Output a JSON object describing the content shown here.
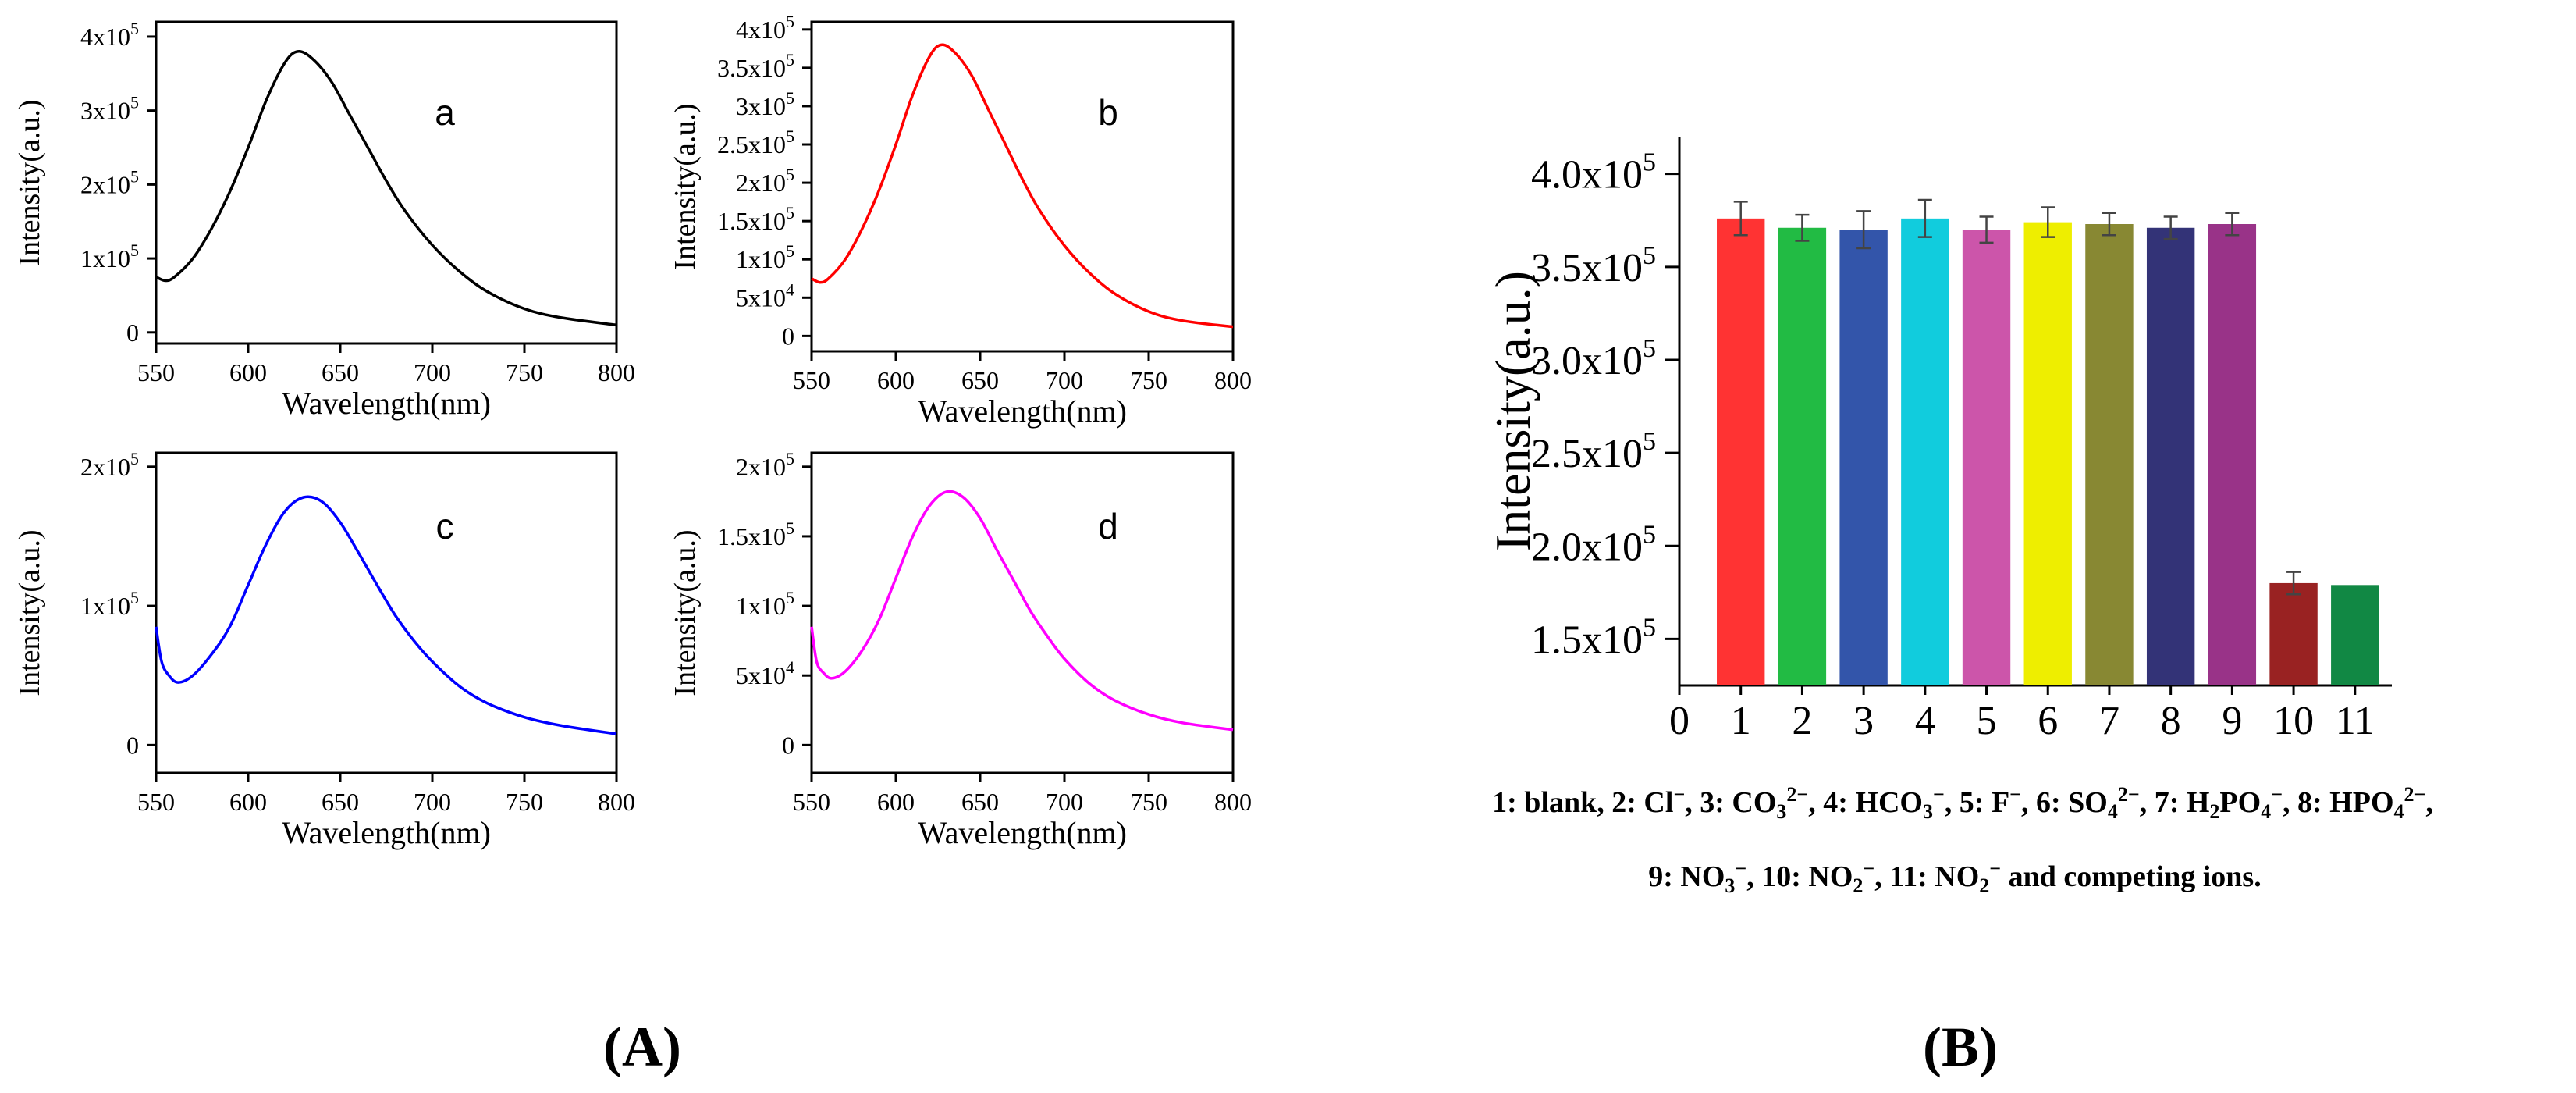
{
  "panels": {
    "A": {
      "label": "A"
    },
    "B": {
      "label": "B"
    }
  },
  "chart_data": [
    {
      "type": "line",
      "panel_label": "a",
      "color": "#000000",
      "xlabel": "Wavelength(nm)",
      "ylabel": "Intensity(a.u.)",
      "xlim": [
        550,
        800
      ],
      "ylim": [
        -15000,
        420000
      ],
      "x_ticks": [
        550,
        600,
        650,
        700,
        750,
        800
      ],
      "y_ticks": [
        {
          "value": 0,
          "mant": "0",
          "exp": ""
        },
        {
          "value": 100000,
          "mant": "1x10",
          "exp": "5"
        },
        {
          "value": 200000,
          "mant": "2x10",
          "exp": "5"
        },
        {
          "value": 300000,
          "mant": "3x10",
          "exp": "5"
        },
        {
          "value": 400000,
          "mant": "4x10",
          "exp": "5"
        }
      ],
      "x": [
        550,
        555,
        560,
        570,
        580,
        590,
        600,
        610,
        620,
        627,
        635,
        645,
        655,
        665,
        675,
        685,
        700,
        715,
        730,
        750,
        770,
        800
      ],
      "y": [
        75000,
        70000,
        75000,
        100000,
        140000,
        190000,
        250000,
        315000,
        365000,
        380000,
        370000,
        340000,
        295000,
        250000,
        205000,
        165000,
        118000,
        82000,
        55000,
        32000,
        20000,
        10000
      ]
    },
    {
      "type": "line",
      "panel_label": "b",
      "color": "#ff0000",
      "xlabel": "Wavelength(nm)",
      "ylabel": "Intensity(a.u.)",
      "xlim": [
        550,
        800
      ],
      "ylim": [
        -20000,
        410000
      ],
      "x_ticks": [
        550,
        600,
        650,
        700,
        750,
        800
      ],
      "y_ticks": [
        {
          "value": 0,
          "mant": "0",
          "exp": ""
        },
        {
          "value": 50000,
          "mant": "5x10",
          "exp": "4"
        },
        {
          "value": 100000,
          "mant": "1x10",
          "exp": "5"
        },
        {
          "value": 150000,
          "mant": "1.5x10",
          "exp": "5"
        },
        {
          "value": 200000,
          "mant": "2x10",
          "exp": "5"
        },
        {
          "value": 250000,
          "mant": "2.5x10",
          "exp": "5"
        },
        {
          "value": 300000,
          "mant": "3x10",
          "exp": "5"
        },
        {
          "value": 350000,
          "mant": "3.5x10",
          "exp": "5"
        },
        {
          "value": 400000,
          "mant": "4x10",
          "exp": "5"
        }
      ],
      "x": [
        550,
        555,
        560,
        570,
        580,
        590,
        600,
        610,
        620,
        627,
        635,
        645,
        655,
        665,
        675,
        685,
        700,
        715,
        730,
        750,
        770,
        800
      ],
      "y": [
        75000,
        70000,
        75000,
        100000,
        140000,
        190000,
        250000,
        315000,
        365000,
        380000,
        370000,
        340000,
        295000,
        250000,
        205000,
        165000,
        118000,
        82000,
        55000,
        32000,
        20000,
        12000
      ]
    },
    {
      "type": "line",
      "panel_label": "c",
      "color": "#0000ff",
      "xlabel": "Wavelength(nm)",
      "ylabel": "Intensity(a.u.)",
      "xlim": [
        550,
        800
      ],
      "ylim": [
        -20000,
        210000
      ],
      "x_ticks": [
        550,
        600,
        650,
        700,
        750,
        800
      ],
      "y_ticks": [
        {
          "value": 0,
          "mant": "0",
          "exp": ""
        },
        {
          "value": 100000,
          "mant": "1x10",
          "exp": "5"
        },
        {
          "value": 200000,
          "mant": "2x10",
          "exp": "5"
        }
      ],
      "x": [
        550,
        553,
        557,
        562,
        570,
        580,
        590,
        600,
        610,
        620,
        630,
        640,
        650,
        660,
        670,
        680,
        690,
        700,
        715,
        730,
        750,
        770,
        800
      ],
      "y": [
        85000,
        60000,
        50000,
        45000,
        50000,
        65000,
        85000,
        115000,
        145000,
        168000,
        178000,
        175000,
        160000,
        138000,
        115000,
        93000,
        75000,
        60000,
        42000,
        30000,
        20000,
        14000,
        8000
      ]
    },
    {
      "type": "line",
      "panel_label": "d",
      "color": "#ff00ff",
      "xlabel": "Wavelength(nm)",
      "ylabel": "Intensity(a.u.)",
      "xlim": [
        550,
        800
      ],
      "ylim": [
        -20000,
        210000
      ],
      "x_ticks": [
        550,
        600,
        650,
        700,
        750,
        800
      ],
      "y_ticks": [
        {
          "value": 0,
          "mant": "0",
          "exp": ""
        },
        {
          "value": 50000,
          "mant": "5x10",
          "exp": "4"
        },
        {
          "value": 100000,
          "mant": "1x10",
          "exp": "5"
        },
        {
          "value": 150000,
          "mant": "1.5x10",
          "exp": "5"
        },
        {
          "value": 200000,
          "mant": "2x10",
          "exp": "5"
        }
      ],
      "x": [
        550,
        553,
        557,
        562,
        570,
        580,
        590,
        600,
        610,
        620,
        630,
        640,
        650,
        660,
        670,
        680,
        690,
        700,
        715,
        730,
        750,
        770,
        800
      ],
      "y": [
        85000,
        60000,
        52000,
        48000,
        53000,
        68000,
        90000,
        120000,
        150000,
        172000,
        182000,
        178000,
        163000,
        140000,
        118000,
        96000,
        78000,
        62000,
        44000,
        32000,
        22000,
        16000,
        11000
      ]
    },
    {
      "type": "bar",
      "title": "",
      "xlabel": "",
      "ylabel": "Intensity(a.u.)",
      "xlim": [
        0,
        11.6
      ],
      "ylim": [
        125000,
        420000
      ],
      "x_ticks": [
        0,
        1,
        2,
        3,
        4,
        5,
        6,
        7,
        8,
        9,
        10,
        11
      ],
      "y_ticks": [
        {
          "value": 150000,
          "mant": "1.5x10",
          "exp": "5"
        },
        {
          "value": 200000,
          "mant": "2.0x10",
          "exp": "5"
        },
        {
          "value": 250000,
          "mant": "2.5x10",
          "exp": "5"
        },
        {
          "value": 300000,
          "mant": "3.0x10",
          "exp": "5"
        },
        {
          "value": 350000,
          "mant": "3.5x10",
          "exp": "5"
        },
        {
          "value": 400000,
          "mant": "4.0x10",
          "exp": "5"
        }
      ],
      "categories": [
        "1",
        "2",
        "3",
        "4",
        "5",
        "6",
        "7",
        "8",
        "9",
        "10",
        "11"
      ],
      "values": [
        376000,
        371000,
        370000,
        376000,
        370000,
        374000,
        373000,
        371000,
        373000,
        180000,
        179000
      ],
      "errors": [
        9000,
        7000,
        10000,
        10000,
        7000,
        8000,
        6000,
        6000,
        6000,
        6000,
        0
      ],
      "colors": [
        "#ff3333",
        "#22bb44",
        "#3355aa",
        "#11ccdd",
        "#cc55aa",
        "#eeee00",
        "#888833",
        "#333377",
        "#993388",
        "#992222",
        "#118844"
      ],
      "caption_line1": [
        {
          "t": "1: blank, 2: Cl"
        },
        {
          "t": "−",
          "sup": true
        },
        {
          "t": ", 3: CO"
        },
        {
          "t": "3",
          "sub": true
        },
        {
          "t": "2−",
          "sup": true
        },
        {
          "t": ", 4: HCO"
        },
        {
          "t": "3",
          "sub": true
        },
        {
          "t": "−",
          "sup": true
        },
        {
          "t": ", 5: F"
        },
        {
          "t": "−",
          "sup": true
        },
        {
          "t": ", 6: SO"
        },
        {
          "t": "4",
          "sub": true
        },
        {
          "t": "2−",
          "sup": true
        },
        {
          "t": ", 7: H"
        },
        {
          "t": "2",
          "sub": true
        },
        {
          "t": "PO"
        },
        {
          "t": "4",
          "sub": true
        },
        {
          "t": "−",
          "sup": true
        },
        {
          "t": ", 8: HPO"
        },
        {
          "t": "4",
          "sub": true
        },
        {
          "t": "2−",
          "sup": true
        },
        {
          "t": ","
        }
      ],
      "caption_line2": [
        {
          "t": "9: NO"
        },
        {
          "t": "3",
          "sub": true
        },
        {
          "t": "−",
          "sup": true
        },
        {
          "t": ", 10: NO"
        },
        {
          "t": "2",
          "sub": true
        },
        {
          "t": "−",
          "sup": true
        },
        {
          "t": ", 11: NO"
        },
        {
          "t": "2",
          "sub": true
        },
        {
          "t": "−",
          "sup": true
        },
        {
          "t": " and competing ions."
        }
      ]
    }
  ]
}
